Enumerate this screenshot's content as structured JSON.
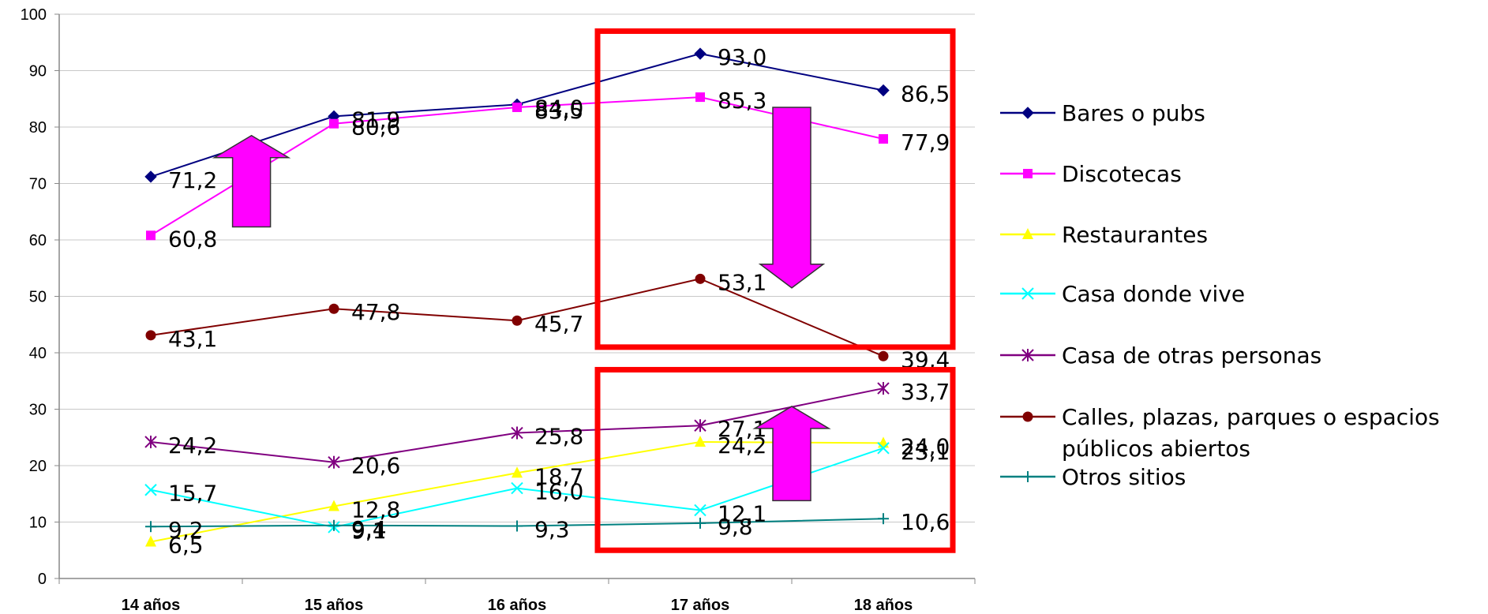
{
  "chart_data": {
    "type": "line",
    "title": "",
    "xlabel": "",
    "ylabel": "",
    "ylim": [
      0,
      100
    ],
    "yticks": [
      "0",
      "10",
      "20",
      "30",
      "40",
      "50",
      "60",
      "70",
      "80",
      "90",
      "100"
    ],
    "categories": [
      "14 años",
      "15 años",
      "16 años",
      "17 años",
      "18 años"
    ],
    "grid": "horizontal",
    "legend_position": "right",
    "series": [
      {
        "name": "Bares o pubs",
        "color": "#000080",
        "marker": "diamond",
        "values": [
          71.2,
          81.9,
          84.0,
          93.0,
          86.5
        ],
        "labels": [
          "71,2",
          "81,9",
          "84,0",
          "93,0",
          "86,5"
        ]
      },
      {
        "name": "Discotecas",
        "color": "#FF00FF",
        "marker": "square",
        "values": [
          60.8,
          80.6,
          83.5,
          85.3,
          77.9
        ],
        "labels": [
          "60,8",
          "80,6",
          "83,5",
          "85,3",
          "77,9"
        ]
      },
      {
        "name": "Restaurantes",
        "color": "#FFFF00",
        "marker": "triangle",
        "values": [
          6.5,
          12.8,
          18.7,
          24.2,
          24.0
        ],
        "labels": [
          "6,5",
          "12,8",
          "18,7",
          "24,2",
          "24,0"
        ]
      },
      {
        "name": "Casa donde vive",
        "color": "#00FFFF",
        "marker": "x",
        "values": [
          15.7,
          9.1,
          16.0,
          12.1,
          23.1
        ],
        "labels": [
          "15,7",
          "9,1",
          "16,0",
          "12,1",
          "23,1"
        ]
      },
      {
        "name": "Casa de otras personas",
        "color": "#800080",
        "marker": "star",
        "values": [
          24.2,
          20.6,
          25.8,
          27.1,
          33.7
        ],
        "labels": [
          "24,2",
          "20,6",
          "25,8",
          "27,1",
          "33,7"
        ]
      },
      {
        "name": "Calles, plazas, parques o espacios públicos abiertos",
        "legend_lines": [
          "Calles, plazas, parques o espacios",
          "públicos abiertos"
        ],
        "color": "#800000",
        "marker": "circle",
        "values": [
          43.1,
          47.8,
          45.7,
          53.1,
          39.4
        ],
        "labels": [
          "43,1",
          "47,8",
          "45,7",
          "53,1",
          "39,4"
        ]
      },
      {
        "name": "Otros sitios",
        "color": "#008080",
        "marker": "plus",
        "values": [
          9.2,
          9.4,
          9.3,
          9.8,
          10.6
        ],
        "labels": [
          "9,2",
          "9,4",
          "9,3",
          "9,8",
          "10,6"
        ]
      }
    ],
    "annotations": [
      {
        "type": "arrow-up",
        "color": "#FF00FF",
        "near": "14-15 años",
        "refers_to": "Bares o pubs / Discotecas"
      },
      {
        "type": "arrow-down",
        "color": "#FF00FF",
        "near": "17-18 años",
        "refers_to": "Bares o pubs / Discotecas"
      },
      {
        "type": "arrow-up",
        "color": "#FF00FF",
        "near": "17-18 años",
        "refers_to": "Casa de otras personas / Casa donde vive / Restaurantes"
      },
      {
        "type": "highlight-box",
        "color": "#FF0000",
        "region": "17-18 años, upper series"
      },
      {
        "type": "highlight-box",
        "color": "#FF0000",
        "region": "17-18 años, lower series"
      }
    ]
  }
}
